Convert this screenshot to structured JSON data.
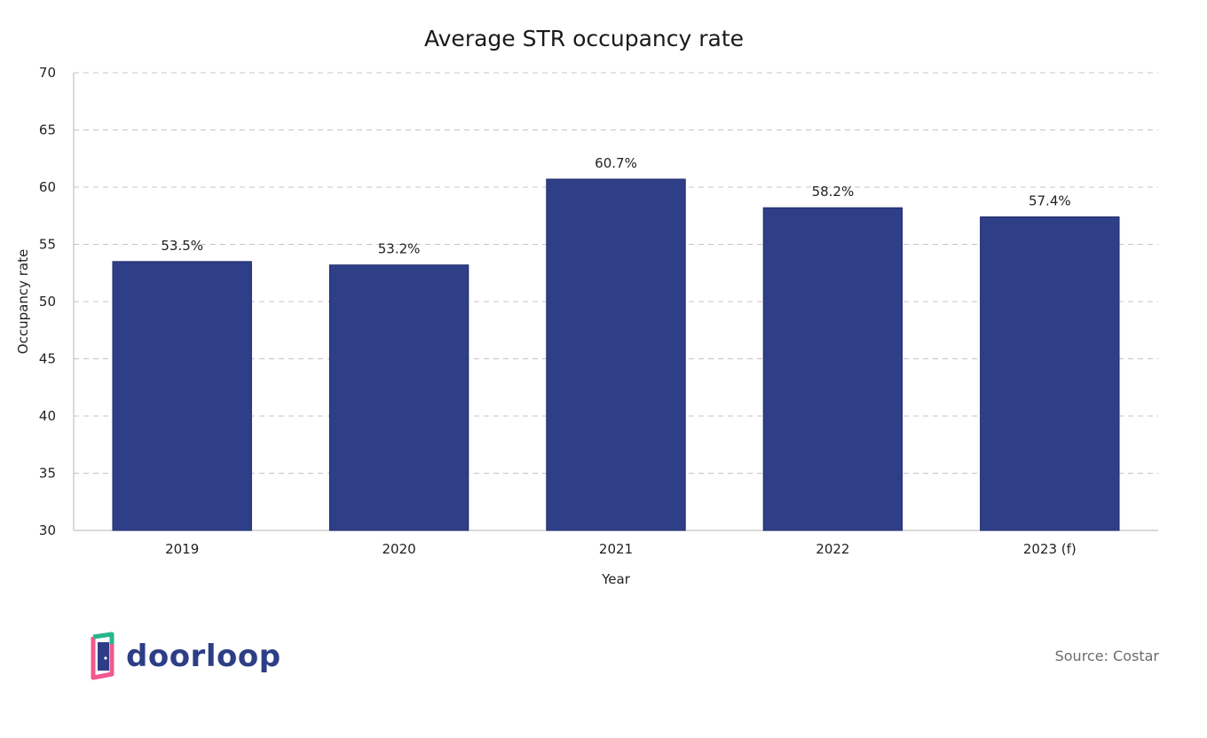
{
  "colors": {
    "bar": "#2e3f87",
    "grid": "#c8c0d2",
    "axis": "#b5b5b5",
    "logo_text": "#2d3e86",
    "logo_pink": "#f0588f",
    "logo_green": "#27b58b"
  },
  "branding": {
    "logo_text": "doorloop",
    "source": "Source: Costar"
  },
  "chart_data": {
    "type": "bar",
    "title": "Average STR occupancy rate",
    "xlabel": "Year",
    "ylabel": "Occupancy rate",
    "categories": [
      "2019",
      "2020",
      "2021",
      "2022",
      "2023 (f)"
    ],
    "values": [
      53.5,
      53.2,
      60.7,
      58.2,
      57.4
    ],
    "data_labels": [
      "53.5%",
      "53.2%",
      "60.7%",
      "58.2%",
      "57.4%"
    ],
    "ylim": [
      30,
      70
    ],
    "yticks": [
      30,
      35,
      40,
      45,
      50,
      55,
      60,
      65,
      70
    ],
    "grid": true,
    "legend": "none"
  }
}
